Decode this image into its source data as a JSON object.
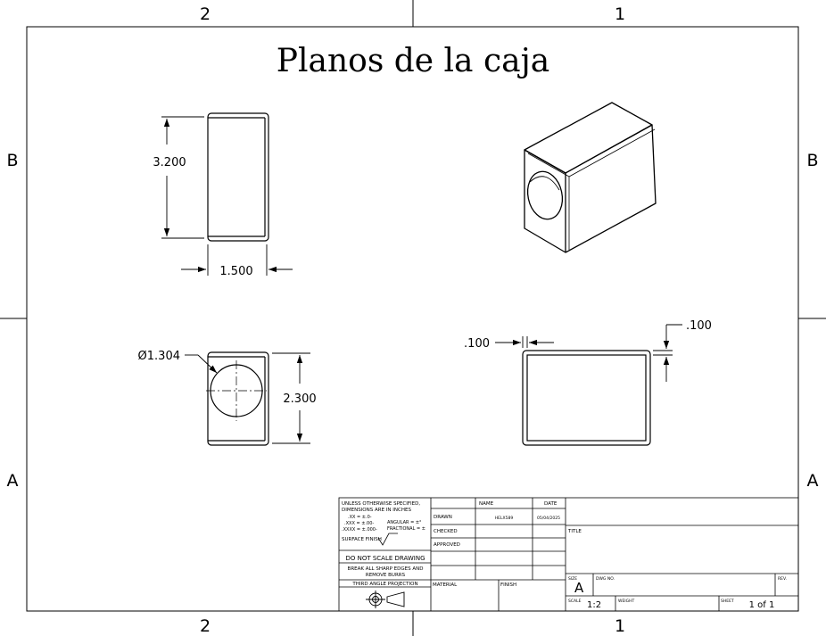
{
  "sheet": {
    "title": "Planos de la caja",
    "zones": {
      "top_left": "2",
      "top_right": "1",
      "bottom_left": "2",
      "bottom_right": "1",
      "left_top": "B",
      "left_bottom": "A",
      "right_top": "B",
      "right_bottom": "A"
    }
  },
  "dimensions": {
    "height": "3.200",
    "width": "1.500",
    "hole_diameter": "Ø1.304",
    "depth": "2.300",
    "wall_horizontal": ".100",
    "wall_vertical": ".100"
  },
  "title_block": {
    "tolerance_line1": "UNLESS OTHERWISE SPECIFIED,",
    "tolerance_line2": "DIMENSIONS ARE IN INCHES",
    "tol_xx": ".XX = ±.0-",
    "tol_xxx": ".XXX = ±.00-",
    "tol_xxxx": ".XXXX = ±.000-",
    "tol_angular": "ANGULAR = ±°",
    "tol_fractional": "FRACTIONAL = ±",
    "surface_finish": "SURFACE FINISH",
    "do_not_scale": "DO NOT SCALE DRAWING",
    "break_edges_1": "BREAK ALL SHARP EDGES AND",
    "break_edges_2": "REMOVE BURRS",
    "projection": "THIRD ANGLE PROJECTION",
    "col_name": "NAME",
    "col_date": "DATE",
    "row_drawn": "DRAWN",
    "row_checked": "CHECKED",
    "row_approved": "APPROVED",
    "drawn_name": "HELX589",
    "drawn_date": "05/04/2025",
    "material": "MATERIAL",
    "finish": "FINISH",
    "title_label": "TITLE",
    "size_label": "SIZE",
    "size_value": "A",
    "dwg_no_label": "DWG NO.",
    "rev_label": "REV.",
    "scale_label": "SCALE",
    "scale_value": "1:2",
    "weight_label": "WEIGHT",
    "sheet_label": "SHEET",
    "sheet_value": "1 of 1"
  }
}
